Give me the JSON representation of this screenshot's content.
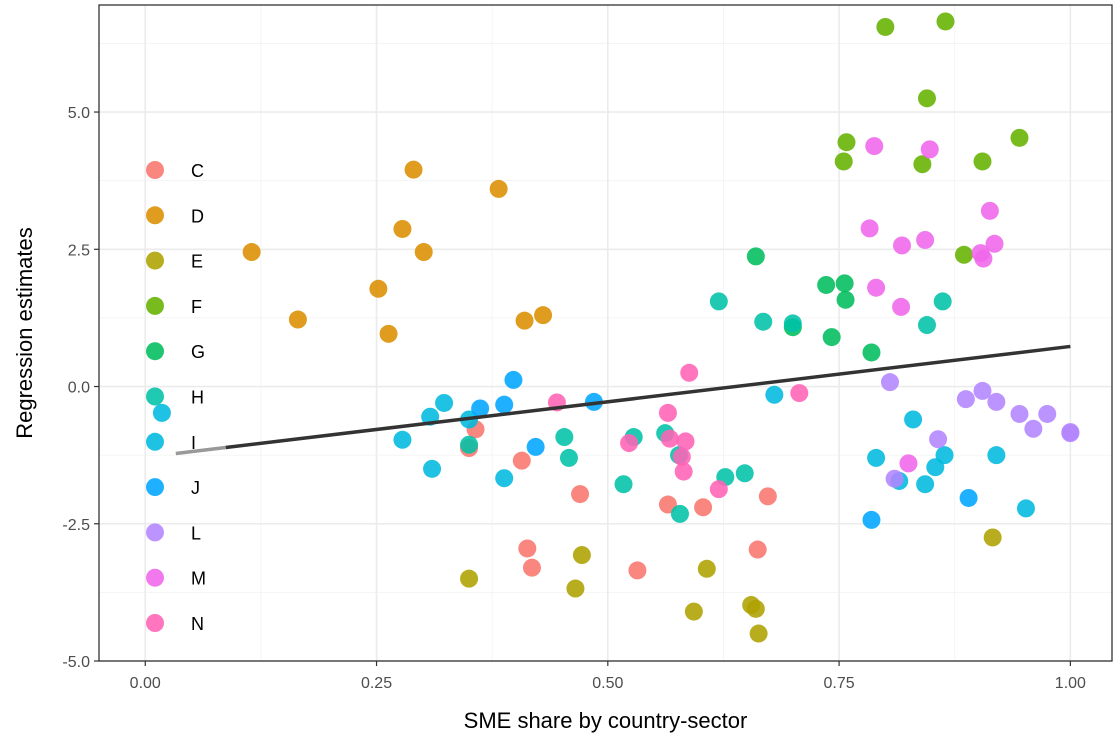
{
  "chart_data": {
    "type": "scatter",
    "title": "",
    "xlabel": "SME share by country-sector",
    "ylabel": "Regression estimates",
    "xlim": [
      -0.05,
      1.045
    ],
    "ylim": [
      -5.0,
      6.95
    ],
    "xticks": [
      0.0,
      0.25,
      0.5,
      0.75,
      1.0
    ],
    "xtick_labels": [
      "0.00",
      "0.25",
      "0.50",
      "0.75",
      "1.00"
    ],
    "yticks": [
      -5.0,
      -2.5,
      0.0,
      2.5,
      5.0
    ],
    "ytick_labels": [
      "-5.0",
      "-2.5",
      "0.0",
      "2.5",
      "5.0"
    ],
    "grid": true,
    "legend_position": "left-inside",
    "fit_line": {
      "x_start": 0.033,
      "y_start": -1.22,
      "x_end": 1.0,
      "y_end": 0.73,
      "faded_until_x": 0.087,
      "color": "#333333"
    },
    "series": [
      {
        "name": "C",
        "color": "#F8766D",
        "x": [
          0.35,
          0.357,
          0.407,
          0.413,
          0.418,
          0.47,
          0.532,
          0.565,
          0.603,
          0.662,
          0.673
        ],
        "y": [
          -1.12,
          -0.78,
          -1.35,
          -2.95,
          -3.3,
          -1.96,
          -3.35,
          -2.15,
          -2.2,
          -2.97,
          -2.0
        ]
      },
      {
        "name": "D",
        "color": "#DB8E00",
        "x": [
          0.115,
          0.165,
          0.252,
          0.263,
          0.278,
          0.29,
          0.301,
          0.382,
          0.41,
          0.43
        ],
        "y": [
          2.45,
          1.22,
          1.78,
          0.96,
          2.87,
          3.95,
          2.45,
          3.6,
          1.2,
          1.3
        ]
      },
      {
        "name": "E",
        "color": "#AEA200",
        "x": [
          0.35,
          0.465,
          0.472,
          0.593,
          0.607,
          0.655,
          0.66,
          0.663,
          0.916
        ],
        "y": [
          -3.5,
          -3.68,
          -3.07,
          -4.1,
          -3.32,
          -3.98,
          -4.05,
          -4.5,
          -2.75
        ]
      },
      {
        "name": "F",
        "color": "#64B200",
        "x": [
          0.755,
          0.758,
          0.8,
          0.84,
          0.845,
          0.865,
          0.885,
          0.905,
          0.945
        ],
        "y": [
          4.1,
          4.45,
          6.55,
          4.05,
          5.25,
          6.65,
          2.4,
          4.1,
          4.53
        ]
      },
      {
        "name": "G",
        "color": "#00BD5C",
        "x": [
          0.66,
          0.7,
          0.736,
          0.742,
          0.756,
          0.757,
          0.785
        ],
        "y": [
          2.37,
          1.08,
          1.85,
          0.9,
          1.88,
          1.58,
          0.62
        ]
      },
      {
        "name": "H",
        "color": "#00C1A7",
        "x": [
          0.35,
          0.453,
          0.458,
          0.517,
          0.528,
          0.562,
          0.577,
          0.578,
          0.627,
          0.648,
          0.668,
          0.845,
          0.862,
          0.7,
          0.62
        ],
        "y": [
          -1.06,
          -0.92,
          -1.3,
          -1.78,
          -0.92,
          -0.85,
          -1.25,
          -2.32,
          -1.65,
          -1.58,
          1.18,
          1.12,
          1.55,
          1.15,
          1.55
        ]
      },
      {
        "name": "I",
        "color": "#00BADE",
        "x": [
          0.018,
          0.278,
          0.308,
          0.31,
          0.323,
          0.35,
          0.388,
          0.68,
          0.79,
          0.83,
          0.854,
          0.864,
          0.92,
          0.952,
          0.843,
          0.815
        ],
        "y": [
          -0.48,
          -0.97,
          -0.55,
          -1.5,
          -0.3,
          -0.6,
          -1.67,
          -0.15,
          -1.3,
          -0.6,
          -1.47,
          -1.25,
          -1.25,
          -2.22,
          -1.78,
          -1.72
        ]
      },
      {
        "name": "J",
        "color": "#00A6FF",
        "x": [
          0.362,
          0.388,
          0.398,
          0.422,
          0.485,
          0.785,
          0.89
        ],
        "y": [
          -0.4,
          -0.33,
          0.12,
          -1.1,
          -0.28,
          -2.43,
          -2.03
        ]
      },
      {
        "name": "L",
        "color": "#B385FF",
        "x": [
          0.805,
          0.81,
          0.857,
          0.887,
          0.905,
          0.92,
          0.945,
          0.96,
          0.975,
          1.0,
          1.0
        ],
        "y": [
          0.08,
          -1.68,
          -0.96,
          -0.23,
          -0.08,
          -0.28,
          -0.5,
          -0.77,
          -0.5,
          -0.85,
          -0.83
        ]
      },
      {
        "name": "M",
        "color": "#EF67EB",
        "x": [
          0.783,
          0.788,
          0.79,
          0.818,
          0.817,
          0.843,
          0.848,
          0.903,
          0.906,
          0.913,
          0.918,
          0.825
        ],
        "y": [
          2.88,
          4.38,
          1.8,
          2.57,
          1.45,
          2.67,
          4.32,
          2.43,
          2.33,
          3.2,
          2.6,
          -1.4
        ]
      },
      {
        "name": "N",
        "color": "#FF63B6",
        "x": [
          0.445,
          0.523,
          0.565,
          0.567,
          0.58,
          0.582,
          0.584,
          0.588,
          0.62,
          0.707
        ],
        "y": [
          -0.29,
          -1.03,
          -0.48,
          -0.95,
          -1.28,
          -1.55,
          -1.0,
          0.25,
          -1.87,
          -0.12
        ]
      }
    ]
  }
}
